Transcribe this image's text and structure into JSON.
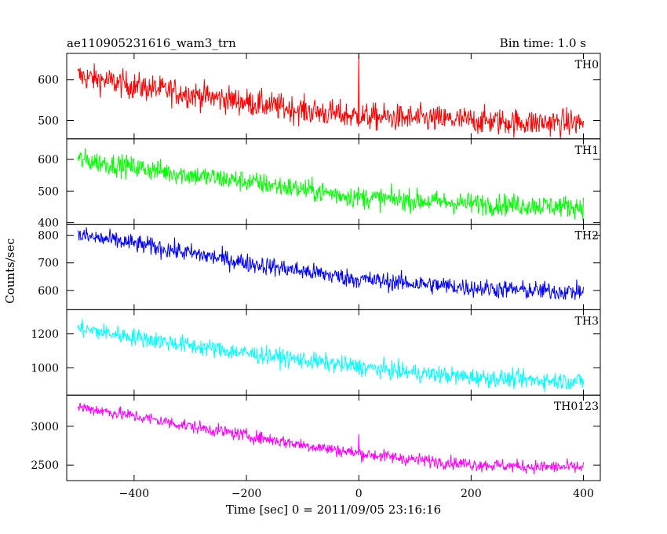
{
  "chart_data": {
    "type": "line",
    "title": "ae110905231616_wam3_trn",
    "bin_time": "Bin time: 1.0 s",
    "xlabel": "Time [sec] 0 = 2011/09/05 23:16:16",
    "ylabel": "Counts/sec",
    "xlim": [
      -520,
      430
    ],
    "x_ticks": [
      -400,
      -200,
      0,
      200,
      400
    ],
    "x_start": -500,
    "x_end": 400,
    "panels": [
      {
        "name": "TH0",
        "color": "#ff0000",
        "ylim": [
          455,
          665
        ],
        "y_ticks": [
          500,
          600
        ],
        "trend_x": [
          -500,
          -400,
          -300,
          -200,
          -100,
          0,
          100,
          200,
          300,
          400
        ],
        "trend_y": [
          610,
          585,
          565,
          545,
          525,
          510,
          505,
          500,
          495,
          495
        ],
        "noise": 32,
        "spike_x": 0,
        "spike_peak": 665
      },
      {
        "name": "TH1",
        "color": "#00ff00",
        "ylim": [
          395,
          665
        ],
        "y_ticks": [
          400,
          500,
          600
        ],
        "trend_x": [
          -500,
          -400,
          -300,
          -200,
          -100,
          0,
          100,
          200,
          300,
          400
        ],
        "trend_y": [
          600,
          575,
          550,
          530,
          505,
          480,
          470,
          460,
          455,
          450
        ],
        "noise": 33
      },
      {
        "name": "TH2",
        "color": "#0000ff",
        "ylim": [
          530,
          840
        ],
        "y_ticks": [
          600,
          700,
          800
        ],
        "trend_x": [
          -500,
          -400,
          -300,
          -200,
          -100,
          0,
          100,
          200,
          300,
          400
        ],
        "trend_y": [
          800,
          770,
          735,
          700,
          670,
          640,
          625,
          610,
          600,
          595
        ],
        "noise": 32
      },
      {
        "name": "TH3",
        "color": "#00ffff",
        "ylim": [
          840,
          1340
        ],
        "y_ticks": [
          1000,
          1200
        ],
        "trend_x": [
          -500,
          -400,
          -300,
          -200,
          -100,
          0,
          100,
          200,
          300,
          400
        ],
        "trend_y": [
          1230,
          1180,
          1130,
          1085,
          1045,
          1005,
          970,
          945,
          930,
          920
        ],
        "noise": 50
      },
      {
        "name": "TH0123",
        "color": "#ff00ff",
        "ylim": [
          2300,
          3400
        ],
        "y_ticks": [
          2500,
          3000
        ],
        "trend_x": [
          -500,
          -400,
          -300,
          -200,
          -100,
          0,
          100,
          200,
          300,
          400
        ],
        "trend_y": [
          3250,
          3130,
          3000,
          2880,
          2760,
          2650,
          2570,
          2510,
          2480,
          2470
        ],
        "noise": 80,
        "spike_x": 0,
        "spike_peak": 2900
      }
    ]
  }
}
